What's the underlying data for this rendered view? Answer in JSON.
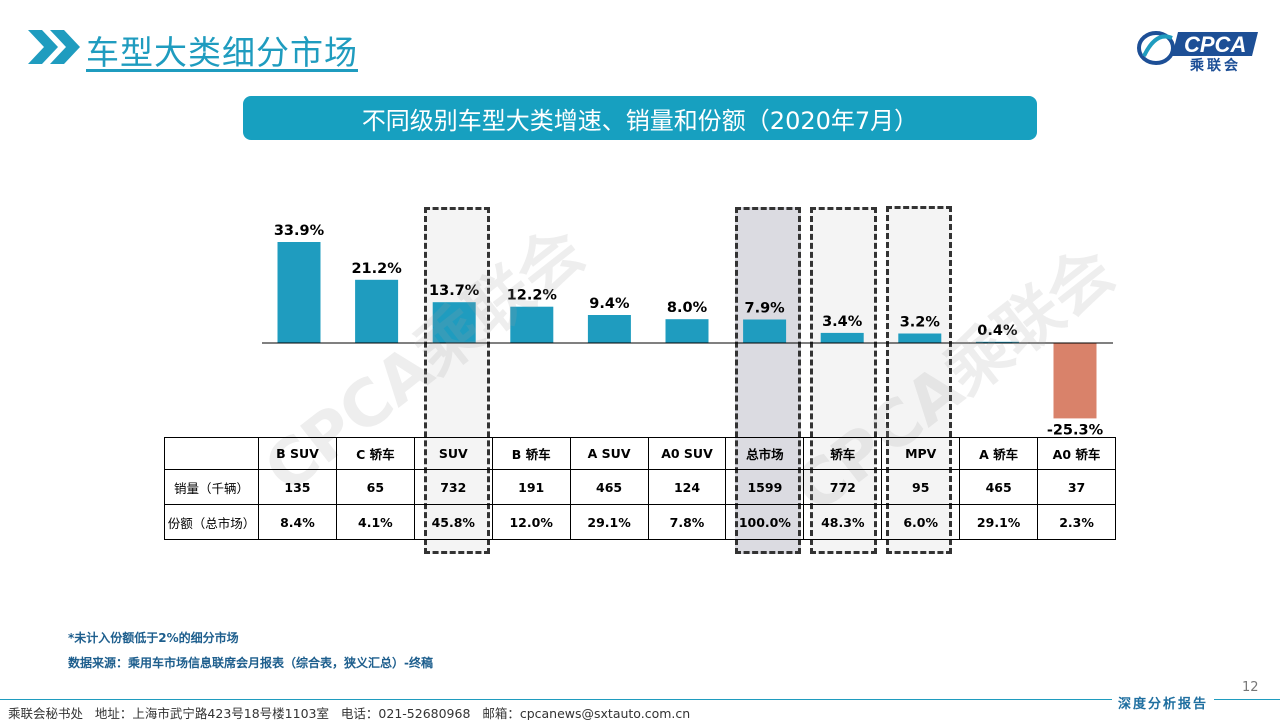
{
  "page": {
    "title": "车型大类细分市场",
    "page_number": "12"
  },
  "logo": {
    "text": "CPCA",
    "subtext": "乘联会"
  },
  "banner": {
    "text": "不同级别车型大类增速、销量和份额（2020年7月）"
  },
  "chart_data": {
    "type": "bar",
    "categories": [
      "B SUV",
      "C 轿车",
      "SUV",
      "B 轿车",
      "A SUV",
      "A0 SUV",
      "总市场",
      "轿车",
      "MPV",
      "A 轿车",
      "A0 轿车"
    ],
    "values": [
      33.9,
      21.2,
      13.7,
      12.2,
      9.4,
      8.0,
      7.9,
      3.4,
      3.2,
      0.4,
      -25.3
    ],
    "data_labels": [
      "33.9%",
      "21.2%",
      "13.7%",
      "12.2%",
      "9.4%",
      "8.0%",
      "7.9%",
      "3.4%",
      "3.2%",
      "0.4%",
      "-25.3%"
    ],
    "colors": {
      "positive": "#1f9cbf",
      "negative": "#d9826a"
    },
    "highlighted_categories": [
      "SUV",
      "总市场",
      "轿车",
      "MPV"
    ],
    "title": "",
    "xlabel": "",
    "ylabel": "",
    "legend": "none",
    "grid": false
  },
  "table": {
    "headers": [
      "B SUV",
      "C 轿车",
      "SUV",
      "B 轿车",
      "A SUV",
      "A0 SUV",
      "总市场",
      "轿车",
      "MPV",
      "A 轿车",
      "A0 轿车"
    ],
    "rows": [
      {
        "label": "销量（千辆）",
        "values": [
          "135",
          "65",
          "732",
          "191",
          "465",
          "124",
          "1599",
          "772",
          "95",
          "465",
          "37"
        ]
      },
      {
        "label": "份额（总市场）",
        "values": [
          "8.4%",
          "4.1%",
          "45.8%",
          "12.0%",
          "29.1%",
          "7.8%",
          "100.0%",
          "48.3%",
          "6.0%",
          "29.1%",
          "2.3%"
        ]
      }
    ]
  },
  "notes": {
    "note1": "*未计入份额低于2%的细分市场",
    "note2": "数据来源：乘用车市场信息联席会月报表（综合表，狭义汇总）-终稿"
  },
  "footer": {
    "text": "乘联会秘书处   地址：上海市武宁路423号18号楼1103室   电话：021-52680968   邮箱：cpcanews@sxtauto.com.cn",
    "tag": "深度分析报告"
  },
  "watermarks": [
    "CPCA乘联会",
    "CPCA乘联会"
  ]
}
